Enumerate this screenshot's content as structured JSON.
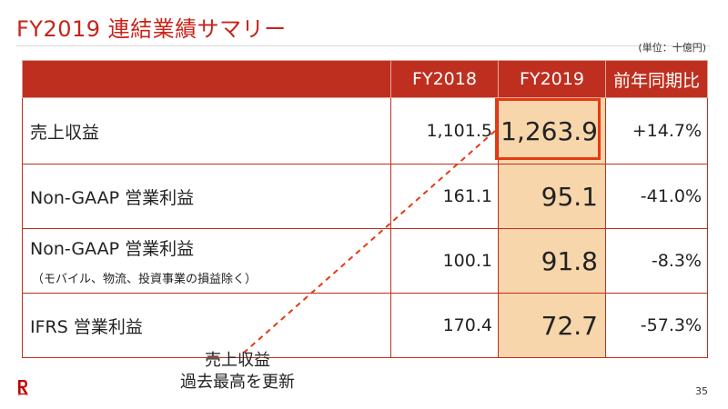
{
  "slide": {
    "title": "FY2019 連結業績サマリー",
    "unit": "(単位：十億円)",
    "page_number": "35"
  },
  "table": {
    "headers": [
      "",
      "FY2018",
      "FY2019",
      "前年同期比"
    ],
    "rows": [
      {
        "label": "売上収益",
        "sub": "",
        "fy2018": "1,101.5",
        "fy2019": "1,263.9",
        "yoy": "+14.7%"
      },
      {
        "label": "Non-GAAP 営業利益",
        "sub": "",
        "fy2018": "161.1",
        "fy2019": "95.1",
        "yoy": "-41.0%"
      },
      {
        "label": "Non-GAAP 営業利益",
        "sub": "（モバイル、物流、投資事業の損益除く）",
        "fy2018": "100.1",
        "fy2019": "91.8",
        "yoy": "-8.3%"
      },
      {
        "label": "IFRS 営業利益",
        "sub": "",
        "fy2018": "170.4",
        "fy2019": "72.7",
        "yoy": "-57.3%"
      }
    ]
  },
  "annotation": {
    "line1": "売上収益",
    "line2": "過去最高を更新"
  },
  "colors": {
    "brand_red": "#bf2f1f",
    "title_red": "#c8241a",
    "highlight_fill": "#f6d6aa",
    "highlight_border": "#e53a12"
  },
  "icons": {
    "logo": "rakuten-r-logo"
  }
}
